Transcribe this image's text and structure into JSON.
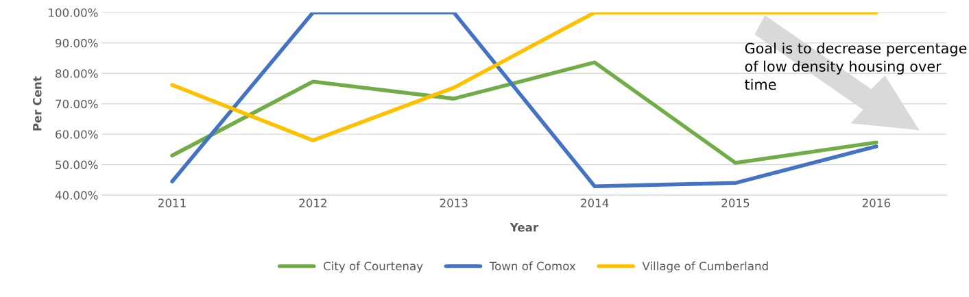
{
  "chart_data": {
    "type": "line",
    "xlabel": "Year",
    "ylabel": "Per Cent",
    "categories": [
      "2011",
      "2012",
      "2013",
      "2014",
      "2015",
      "2016"
    ],
    "series": [
      {
        "name": "City of Courtenay",
        "color": "#70ad47",
        "values": [
          53.0,
          77.3,
          71.7,
          83.6,
          50.6,
          57.3
        ]
      },
      {
        "name": "Town of Comox",
        "color": "#4472c4",
        "values": [
          44.5,
          100,
          100,
          42.9,
          44.0,
          56.0
        ]
      },
      {
        "name": "Village of Cumberland",
        "color": "#ffc000",
        "values": [
          76.2,
          58.0,
          75.3,
          100,
          100,
          100
        ]
      }
    ],
    "ylim": [
      40,
      100
    ],
    "yticks": [
      {
        "value": 40,
        "label": "40.00%"
      },
      {
        "value": 50,
        "label": "50.00%"
      },
      {
        "value": 60,
        "label": "60.00%"
      },
      {
        "value": 70,
        "label": "70.00%"
      },
      {
        "value": 80,
        "label": "80.00%"
      },
      {
        "value": 90,
        "label": "90.00%"
      },
      {
        "value": 100,
        "label": "100.00%"
      }
    ],
    "grid": "y",
    "legend": "bottom",
    "marker": "none",
    "line_style": "solid",
    "annotations": [
      "Goal is to decrease percentage of low density housing over time"
    ]
  }
}
